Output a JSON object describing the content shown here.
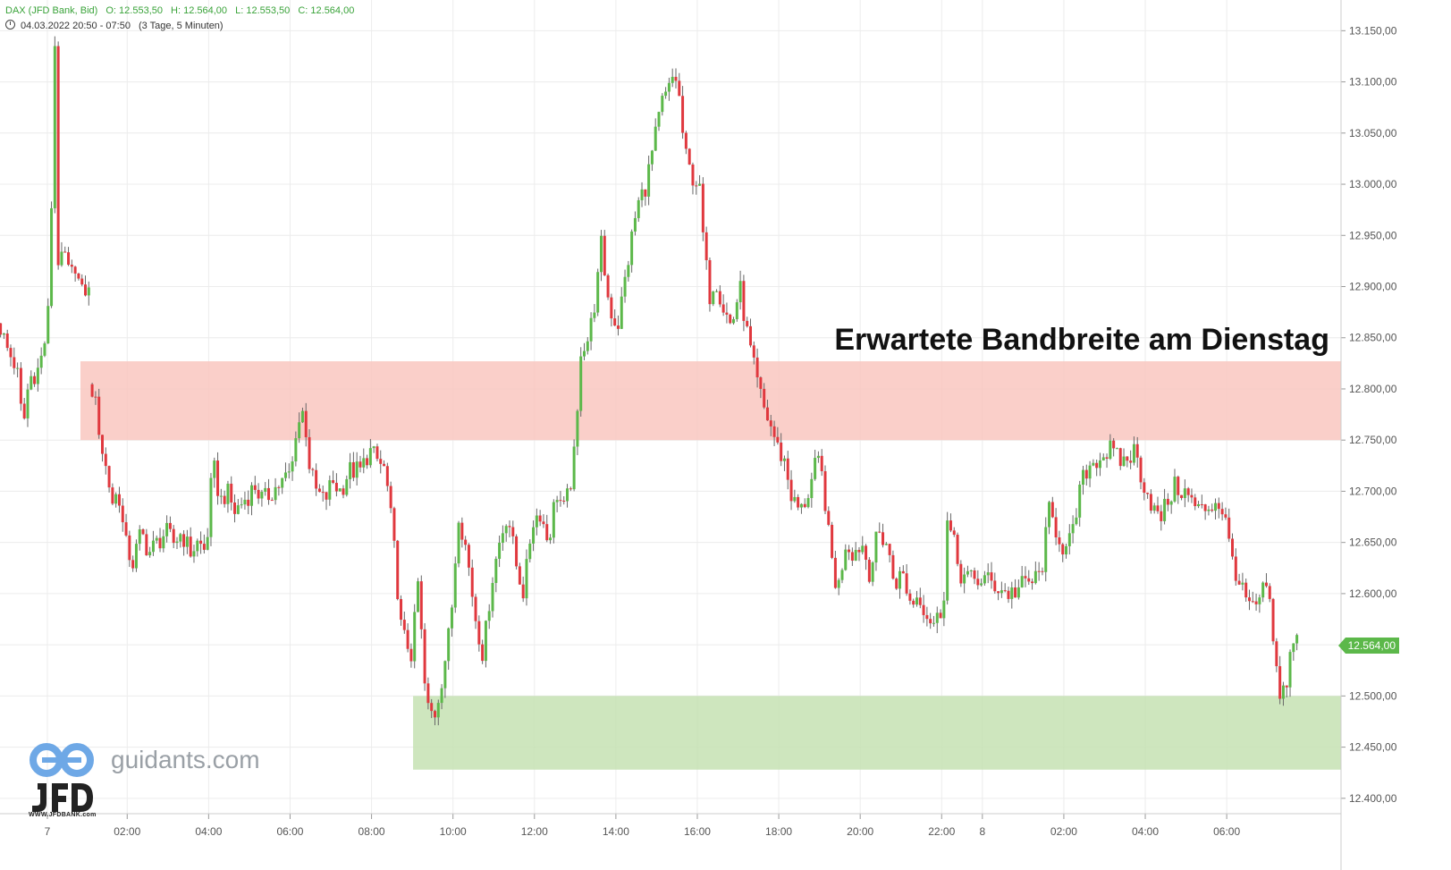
{
  "header": {
    "instrument": "DAX (JFD Bank, Bid)",
    "open": "O: 12.553,50",
    "high": "H: 12.564,00",
    "low": "L: 12.553,50",
    "close": "C: 12.564,00",
    "range": "04.03.2022 20:50 - 07:50",
    "interval": "(3 Tage, 5 Minuten)"
  },
  "annotation": "Erwartete Bandbreite am Dienstag",
  "current_price_label": "12.564,00",
  "branding": {
    "site": "guidants.com",
    "sub": "WWW.JFDBANK.com"
  },
  "colors": {
    "up": "#5cb84a",
    "down": "#e0383e",
    "resistance_zone": "#f9c7bf",
    "support_zone": "#c6e2b3",
    "grid": "#ececec"
  },
  "chart_data": {
    "type": "candlestick",
    "y_range": [
      12385,
      13180
    ],
    "y_ticks": [
      {
        "v": 13150,
        "label": "13.150,00"
      },
      {
        "v": 13100,
        "label": "13.100,00"
      },
      {
        "v": 13050,
        "label": "13.050,00"
      },
      {
        "v": 13000,
        "label": "13.000,00"
      },
      {
        "v": 12950,
        "label": "12.950,00"
      },
      {
        "v": 12900,
        "label": "12.900,00"
      },
      {
        "v": 12850,
        "label": "12.850,00"
      },
      {
        "v": 12800,
        "label": "12.800,00"
      },
      {
        "v": 12750,
        "label": "12.750,00"
      },
      {
        "v": 12700,
        "label": "12.700,00"
      },
      {
        "v": 12650,
        "label": "12.650,00"
      },
      {
        "v": 12600,
        "label": "12.600,00"
      },
      {
        "v": 12550,
        "label": "12.550,00"
      },
      {
        "v": 12500,
        "label": "12.500,00"
      },
      {
        "v": 12450,
        "label": "12.450,00"
      },
      {
        "v": 12400,
        "label": "12.400,00"
      }
    ],
    "x_ticks": [
      {
        "t": 0,
        "label": "7"
      },
      {
        "t": 1.96,
        "label": "02:00"
      },
      {
        "t": 3.96,
        "label": "04:00"
      },
      {
        "t": 5.96,
        "label": "06:00"
      },
      {
        "t": 7.96,
        "label": "08:00"
      },
      {
        "t": 9.96,
        "label": "10:00"
      },
      {
        "t": 11.96,
        "label": "12:00"
      },
      {
        "t": 13.96,
        "label": "14:00"
      },
      {
        "t": 15.96,
        "label": "16:00"
      },
      {
        "t": 17.96,
        "label": "18:00"
      },
      {
        "t": 19.96,
        "label": "20:00"
      },
      {
        "t": 21.96,
        "label": "22:00"
      },
      {
        "t": 22.96,
        "label": "8"
      },
      {
        "t": 24.96,
        "label": "02:00"
      },
      {
        "t": 26.96,
        "label": "04:00"
      },
      {
        "t": 28.96,
        "label": "06:00"
      }
    ],
    "zones": [
      {
        "name": "resistance",
        "from": 12750,
        "to": 12827
      },
      {
        "name": "support",
        "from": 12428,
        "to": 12500
      }
    ],
    "path": [
      [
        -1.15,
        12860
      ],
      [
        -1.0,
        12840
      ],
      [
        -0.75,
        12820
      ],
      [
        -0.6,
        12760
      ],
      [
        -0.45,
        12810
      ],
      [
        -0.2,
        12820
      ],
      [
        0.0,
        12860
      ],
      [
        0.05,
        12900
      ],
      [
        0.1,
        12980
      ],
      [
        0.15,
        13120
      ],
      [
        0.18,
        13140
      ],
      [
        0.2,
        13120
      ],
      [
        0.25,
        12930
      ],
      [
        0.3,
        12920
      ],
      [
        0.45,
        12930
      ],
      [
        0.55,
        12905
      ],
      [
        0.7,
        12925
      ],
      [
        0.8,
        12895
      ],
      [
        0.9,
        12890
      ],
      [
        1.0,
        12912
      ],
      [
        1.1,
        12800
      ],
      [
        1.2,
        12780
      ],
      [
        1.35,
        12740
      ],
      [
        1.45,
        12720
      ],
      [
        1.6,
        12690
      ],
      [
        1.75,
        12700
      ],
      [
        1.9,
        12650
      ],
      [
        2.1,
        12630
      ],
      [
        2.3,
        12660
      ],
      [
        2.5,
        12640
      ],
      [
        2.7,
        12650
      ],
      [
        2.9,
        12660
      ],
      [
        3.1,
        12650
      ],
      [
        3.3,
        12660
      ],
      [
        3.5,
        12640
      ],
      [
        3.7,
        12650
      ],
      [
        3.9,
        12640
      ],
      [
        4.0,
        12700
      ],
      [
        4.1,
        12720
      ],
      [
        4.25,
        12690
      ],
      [
        4.4,
        12700
      ],
      [
        4.6,
        12680
      ],
      [
        4.8,
        12690
      ],
      [
        5.1,
        12705
      ],
      [
        5.3,
        12690
      ],
      [
        5.5,
        12700
      ],
      [
        5.8,
        12710
      ],
      [
        6.0,
        12720
      ],
      [
        6.1,
        12760
      ],
      [
        6.3,
        12780
      ],
      [
        6.45,
        12720
      ],
      [
        6.6,
        12700
      ],
      [
        6.8,
        12690
      ],
      [
        7.0,
        12710
      ],
      [
        7.2,
        12700
      ],
      [
        7.4,
        12720
      ],
      [
        7.7,
        12720
      ],
      [
        7.9,
        12740
      ],
      [
        8.1,
        12730
      ],
      [
        8.3,
        12720
      ],
      [
        8.5,
        12650
      ],
      [
        8.7,
        12560
      ],
      [
        8.85,
        12550
      ],
      [
        8.95,
        12540
      ],
      [
        9.1,
        12610
      ],
      [
        9.3,
        12490
      ],
      [
        9.5,
        12480
      ],
      [
        9.7,
        12520
      ],
      [
        9.9,
        12570
      ],
      [
        10.1,
        12680
      ],
      [
        10.3,
        12640
      ],
      [
        10.5,
        12580
      ],
      [
        10.7,
        12540
      ],
      [
        10.9,
        12610
      ],
      [
        11.1,
        12650
      ],
      [
        11.3,
        12680
      ],
      [
        11.5,
        12630
      ],
      [
        11.7,
        12600
      ],
      [
        11.9,
        12670
      ],
      [
        12.1,
        12680
      ],
      [
        12.3,
        12650
      ],
      [
        12.5,
        12700
      ],
      [
        12.7,
        12680
      ],
      [
        12.9,
        12720
      ],
      [
        13.0,
        12760
      ],
      [
        13.1,
        12840
      ],
      [
        13.3,
        12850
      ],
      [
        13.5,
        12900
      ],
      [
        13.6,
        12940
      ],
      [
        13.8,
        12880
      ],
      [
        14.0,
        12860
      ],
      [
        14.2,
        12910
      ],
      [
        14.4,
        12960
      ],
      [
        14.5,
        12980
      ],
      [
        14.7,
        13000
      ],
      [
        14.9,
        13040
      ],
      [
        15.0,
        13060
      ],
      [
        15.1,
        13080
      ],
      [
        15.25,
        13090
      ],
      [
        15.4,
        13110
      ],
      [
        15.5,
        13090
      ],
      [
        15.65,
        13030
      ],
      [
        15.8,
        13010
      ],
      [
        16.0,
        13000
      ],
      [
        16.1,
        12950
      ],
      [
        16.25,
        12890
      ],
      [
        16.4,
        12910
      ],
      [
        16.6,
        12880
      ],
      [
        16.8,
        12860
      ],
      [
        17.0,
        12900
      ],
      [
        17.2,
        12850
      ],
      [
        17.4,
        12810
      ],
      [
        17.6,
        12780
      ],
      [
        17.8,
        12760
      ],
      [
        17.95,
        12740
      ],
      [
        18.1,
        12730
      ],
      [
        18.3,
        12690
      ],
      [
        18.5,
        12680
      ],
      [
        18.7,
        12700
      ],
      [
        18.9,
        12730
      ],
      [
        19.05,
        12710
      ],
      [
        19.2,
        12650
      ],
      [
        19.4,
        12600
      ],
      [
        19.6,
        12650
      ],
      [
        19.8,
        12640
      ],
      [
        20.0,
        12650
      ],
      [
        20.2,
        12620
      ],
      [
        20.4,
        12660
      ],
      [
        20.6,
        12650
      ],
      [
        20.8,
        12610
      ],
      [
        21.0,
        12620
      ],
      [
        21.2,
        12590
      ],
      [
        21.4,
        12600
      ],
      [
        21.6,
        12580
      ],
      [
        21.8,
        12570
      ],
      [
        22.0,
        12590
      ],
      [
        22.1,
        12670
      ],
      [
        22.25,
        12650
      ],
      [
        22.4,
        12620
      ],
      [
        22.6,
        12615
      ],
      [
        22.8,
        12612
      ],
      [
        23.0,
        12615
      ],
      [
        23.2,
        12610
      ],
      [
        23.4,
        12605
      ],
      [
        23.6,
        12600
      ],
      [
        23.8,
        12603
      ],
      [
        24.0,
        12610
      ],
      [
        24.2,
        12612
      ],
      [
        24.4,
        12620
      ],
      [
        24.6,
        12680
      ],
      [
        24.8,
        12660
      ],
      [
        25.0,
        12640
      ],
      [
        25.2,
        12660
      ],
      [
        25.35,
        12700
      ],
      [
        25.5,
        12720
      ],
      [
        25.7,
        12730
      ],
      [
        25.9,
        12735
      ],
      [
        26.1,
        12740
      ],
      [
        26.3,
        12730
      ],
      [
        26.5,
        12730
      ],
      [
        26.7,
        12740
      ],
      [
        26.9,
        12710
      ],
      [
        27.1,
        12690
      ],
      [
        27.3,
        12670
      ],
      [
        27.5,
        12690
      ],
      [
        27.7,
        12705
      ],
      [
        27.9,
        12700
      ],
      [
        28.1,
        12690
      ],
      [
        28.3,
        12680
      ],
      [
        28.5,
        12685
      ],
      [
        28.7,
        12690
      ],
      [
        28.9,
        12680
      ],
      [
        29.0,
        12650
      ],
      [
        29.2,
        12620
      ],
      [
        29.35,
        12600
      ],
      [
        29.5,
        12590
      ],
      [
        29.7,
        12580
      ],
      [
        29.85,
        12610
      ],
      [
        30.0,
        12590
      ],
      [
        30.15,
        12540
      ],
      [
        30.25,
        12490
      ],
      [
        30.35,
        12505
      ],
      [
        30.45,
        12520
      ],
      [
        30.55,
        12550
      ],
      [
        30.7,
        12564
      ]
    ]
  }
}
